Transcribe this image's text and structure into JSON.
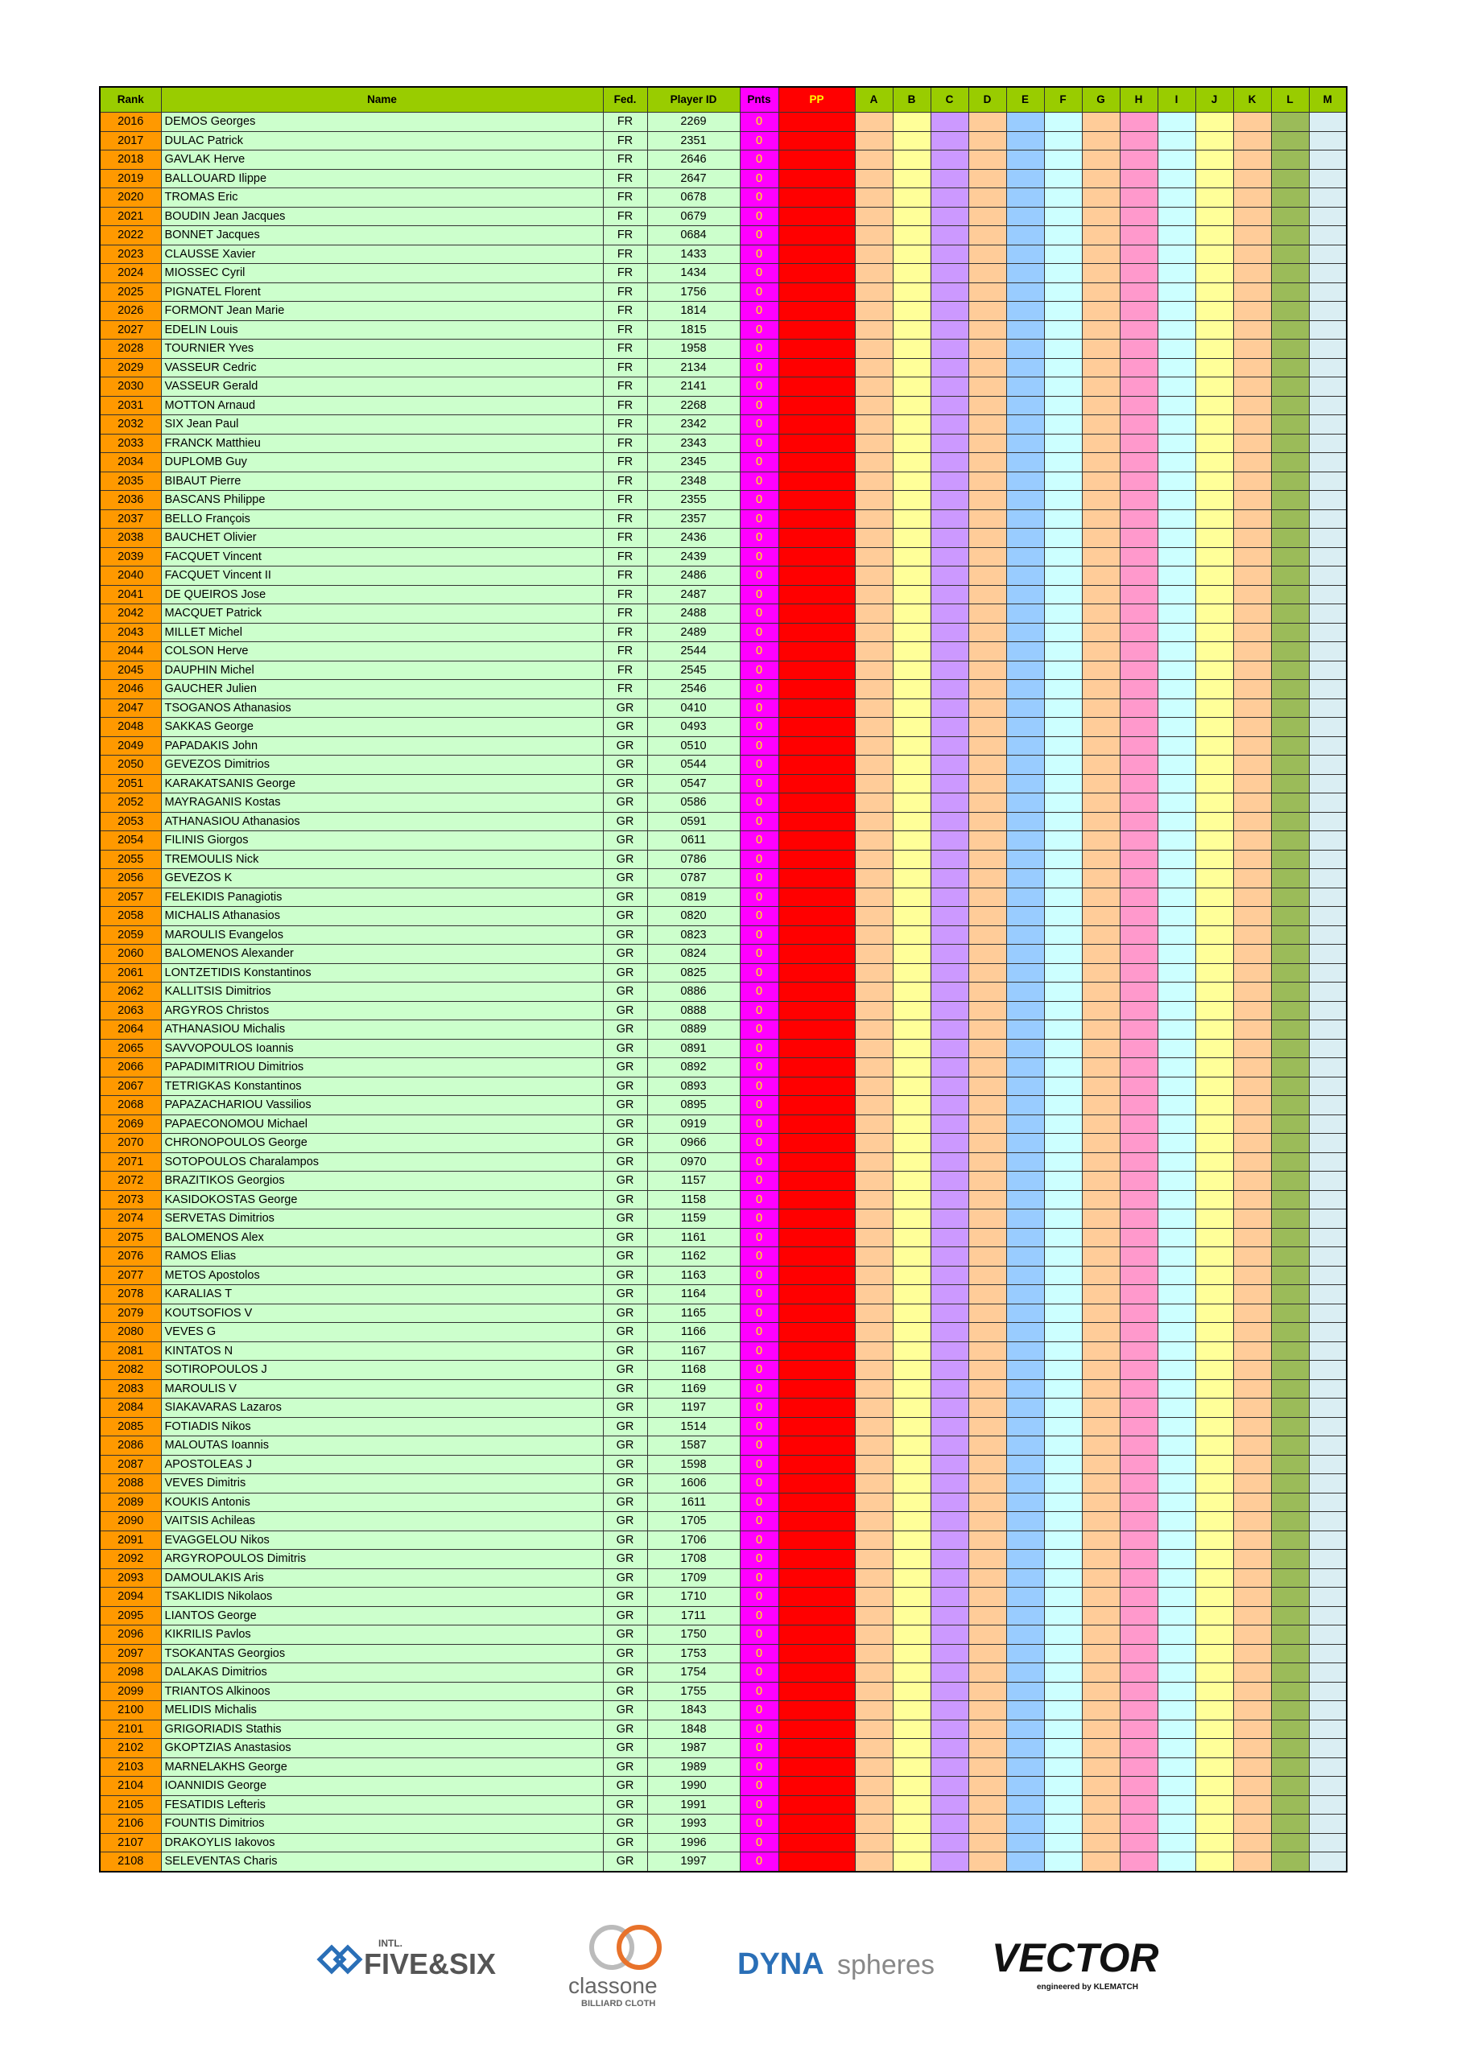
{
  "table": {
    "header": [
      "Rank",
      "Name",
      "Fed.",
      "Player ID",
      "Pnts",
      "PP",
      "A",
      "B",
      "C",
      "D",
      "E",
      "F",
      "G",
      "H",
      "I",
      "J",
      "K",
      "L",
      "M"
    ],
    "rows": [
      [
        2016,
        "DEMOS Georges",
        "FR",
        "2269",
        0
      ],
      [
        2017,
        "DULAC Patrick",
        "FR",
        "2351",
        0
      ],
      [
        2018,
        "GAVLAK Herve",
        "FR",
        "2646",
        0
      ],
      [
        2019,
        "BALLOUARD Ilippe",
        "FR",
        "2647",
        0
      ],
      [
        2020,
        "TROMAS Eric",
        "FR",
        "0678",
        0
      ],
      [
        2021,
        "BOUDIN Jean Jacques",
        "FR",
        "0679",
        0
      ],
      [
        2022,
        "BONNET Jacques",
        "FR",
        "0684",
        0
      ],
      [
        2023,
        "CLAUSSE Xavier",
        "FR",
        "1433",
        0
      ],
      [
        2024,
        "MIOSSEC Cyril",
        "FR",
        "1434",
        0
      ],
      [
        2025,
        "PIGNATEL Florent",
        "FR",
        "1756",
        0
      ],
      [
        2026,
        "FORMONT Jean Marie",
        "FR",
        "1814",
        0
      ],
      [
        2027,
        "EDELIN Louis",
        "FR",
        "1815",
        0
      ],
      [
        2028,
        "TOURNIER Yves",
        "FR",
        "1958",
        0
      ],
      [
        2029,
        "VASSEUR Cedric",
        "FR",
        "2134",
        0
      ],
      [
        2030,
        "VASSEUR Gerald",
        "FR",
        "2141",
        0
      ],
      [
        2031,
        "MOTTON Arnaud",
        "FR",
        "2268",
        0
      ],
      [
        2032,
        "SIX Jean Paul",
        "FR",
        "2342",
        0
      ],
      [
        2033,
        "FRANCK Matthieu",
        "FR",
        "2343",
        0
      ],
      [
        2034,
        "DUPLOMB  Guy",
        "FR",
        "2345",
        0
      ],
      [
        2035,
        "BIBAUT Pierre",
        "FR",
        "2348",
        0
      ],
      [
        2036,
        "BASCANS Philippe",
        "FR",
        "2355",
        0
      ],
      [
        2037,
        "BELLO François",
        "FR",
        "2357",
        0
      ],
      [
        2038,
        "BAUCHET Olivier",
        "FR",
        "2436",
        0
      ],
      [
        2039,
        "FACQUET Vincent",
        "FR",
        "2439",
        0
      ],
      [
        2040,
        "FACQUET Vincent II",
        "FR",
        "2486",
        0
      ],
      [
        2041,
        "DE QUEIROS Jose",
        "FR",
        "2487",
        0
      ],
      [
        2042,
        "MACQUET Patrick",
        "FR",
        "2488",
        0
      ],
      [
        2043,
        "MILLET Michel",
        "FR",
        "2489",
        0
      ],
      [
        2044,
        "COLSON Herve",
        "FR",
        "2544",
        0
      ],
      [
        2045,
        "DAUPHIN Michel",
        "FR",
        "2545",
        0
      ],
      [
        2046,
        "GAUCHER Julien",
        "FR",
        "2546",
        0
      ],
      [
        2047,
        "TSOGANOS Athanasios",
        "GR",
        "0410",
        0
      ],
      [
        2048,
        "SAKKAS George",
        "GR",
        "0493",
        0
      ],
      [
        2049,
        "PAPADAKIS John",
        "GR",
        "0510",
        0
      ],
      [
        2050,
        "GEVEZOS Dimitrios",
        "GR",
        "0544",
        0
      ],
      [
        2051,
        "KARAKATSANIS George",
        "GR",
        "0547",
        0
      ],
      [
        2052,
        "MAYRAGANIS Kostas",
        "GR",
        "0586",
        0
      ],
      [
        2053,
        "ATHANASIOU Athanasios",
        "GR",
        "0591",
        0
      ],
      [
        2054,
        "FILINIS Giorgos",
        "GR",
        "0611",
        0
      ],
      [
        2055,
        "TREMOULIS Nick",
        "GR",
        "0786",
        0
      ],
      [
        2056,
        "GEVEZOS K",
        "GR",
        "0787",
        0
      ],
      [
        2057,
        "FELEKIDIS Panagiotis",
        "GR",
        "0819",
        0
      ],
      [
        2058,
        "MICHALIS Athanasios",
        "GR",
        "0820",
        0
      ],
      [
        2059,
        "MAROULIS Evangelos",
        "GR",
        "0823",
        0
      ],
      [
        2060,
        "BALOMENOS Alexander",
        "GR",
        "0824",
        0
      ],
      [
        2061,
        "LONTZETIDIS Konstantinos",
        "GR",
        "0825",
        0
      ],
      [
        2062,
        "KALLITSIS Dimitrios",
        "GR",
        "0886",
        0
      ],
      [
        2063,
        "ARGYROS Christos",
        "GR",
        "0888",
        0
      ],
      [
        2064,
        "ATHANASIOU Michalis",
        "GR",
        "0889",
        0
      ],
      [
        2065,
        "SAVVOPOULOS Ioannis",
        "GR",
        "0891",
        0
      ],
      [
        2066,
        "PAPADIMITRIOU Dimitrios",
        "GR",
        "0892",
        0
      ],
      [
        2067,
        "TETRIGKAS Konstantinos",
        "GR",
        "0893",
        0
      ],
      [
        2068,
        "PAPAZACHARIOU Vassilios",
        "GR",
        "0895",
        0
      ],
      [
        2069,
        "PAPAECONOMOU Michael",
        "GR",
        "0919",
        0
      ],
      [
        2070,
        "CHRONOPOULOS George",
        "GR",
        "0966",
        0
      ],
      [
        2071,
        "SOTOPOULOS Charalampos",
        "GR",
        "0970",
        0
      ],
      [
        2072,
        "BRAZITIKOS Georgios",
        "GR",
        "1157",
        0
      ],
      [
        2073,
        "KASIDOKOSTAS George",
        "GR",
        "1158",
        0
      ],
      [
        2074,
        "SERVETAS Dimitrios",
        "GR",
        "1159",
        0
      ],
      [
        2075,
        "BALOMENOS Alex",
        "GR",
        "1161",
        0
      ],
      [
        2076,
        "RAMOS Elias",
        "GR",
        "1162",
        0
      ],
      [
        2077,
        "METOS Apostolos",
        "GR",
        "1163",
        0
      ],
      [
        2078,
        "KARALIAS T",
        "GR",
        "1164",
        0
      ],
      [
        2079,
        "KOUTSOFIOS V",
        "GR",
        "1165",
        0
      ],
      [
        2080,
        "VEVES G",
        "GR",
        "1166",
        0
      ],
      [
        2081,
        "KINTATOS N",
        "GR",
        "1167",
        0
      ],
      [
        2082,
        "SOTIROPOULOS J",
        "GR",
        "1168",
        0
      ],
      [
        2083,
        "MAROULIS V",
        "GR",
        "1169",
        0
      ],
      [
        2084,
        "SIAKAVARAS Lazaros",
        "GR",
        "1197",
        0
      ],
      [
        2085,
        "FOTIADIS Nikos",
        "GR",
        "1514",
        0
      ],
      [
        2086,
        "MALOUTAS Ioannis",
        "GR",
        "1587",
        0
      ],
      [
        2087,
        "APOSTOLEAS J",
        "GR",
        "1598",
        0
      ],
      [
        2088,
        "VEVES Dimitris",
        "GR",
        "1606",
        0
      ],
      [
        2089,
        "KOUKIS Antonis",
        "GR",
        "1611",
        0
      ],
      [
        2090,
        "VAITSIS Achileas",
        "GR",
        "1705",
        0
      ],
      [
        2091,
        "EVAGGELOU Nikos",
        "GR",
        "1706",
        0
      ],
      [
        2092,
        "ARGYROPOULOS Dimitris",
        "GR",
        "1708",
        0
      ],
      [
        2093,
        "DAMOULAKIS Aris",
        "GR",
        "1709",
        0
      ],
      [
        2094,
        "TSAKLIDIS Nikolaos",
        "GR",
        "1710",
        0
      ],
      [
        2095,
        "LIANTOS George",
        "GR",
        "1711",
        0
      ],
      [
        2096,
        "KIKRILIS Pavlos",
        "GR",
        "1750",
        0
      ],
      [
        2097,
        "TSOKANTAS Georgios",
        "GR",
        "1753",
        0
      ],
      [
        2098,
        "DALAKAS Dimitrios",
        "GR",
        "1754",
        0
      ],
      [
        2099,
        "TRIANTOS Alkinoos",
        "GR",
        "1755",
        0
      ],
      [
        2100,
        "MELIDIS Michalis",
        "GR",
        "1843",
        0
      ],
      [
        2101,
        "GRIGORIADIS Stathis",
        "GR",
        "1848",
        0
      ],
      [
        2102,
        "GKOPTZIAS Anastasios",
        "GR",
        "1987",
        0
      ],
      [
        2103,
        "MARNELAKHS George",
        "GR",
        "1989",
        0
      ],
      [
        2104,
        "IOANNIDIS George",
        "GR",
        "1990",
        0
      ],
      [
        2105,
        "FESATIDIS Lefteris",
        "GR",
        "1991",
        0
      ],
      [
        2106,
        "FOUNTIS Dimitrios",
        "GR",
        "1993",
        0
      ],
      [
        2107,
        "DRAKOYLIS Iakovos",
        "GR",
        "1996",
        0
      ],
      [
        2108,
        "SELEVENTAS Charis",
        "GR",
        "1997",
        0
      ]
    ]
  },
  "sponsors": {
    "fivesix_small": "INTL.",
    "fivesix": "FIVE&SIX",
    "classone": "classone",
    "classone_sub": "BILLIARD CLOTH",
    "dyna": "DYNA",
    "spheres": "spheres",
    "vector": "VECTOR",
    "vector_sub": "engineered by KLEMATCH"
  }
}
